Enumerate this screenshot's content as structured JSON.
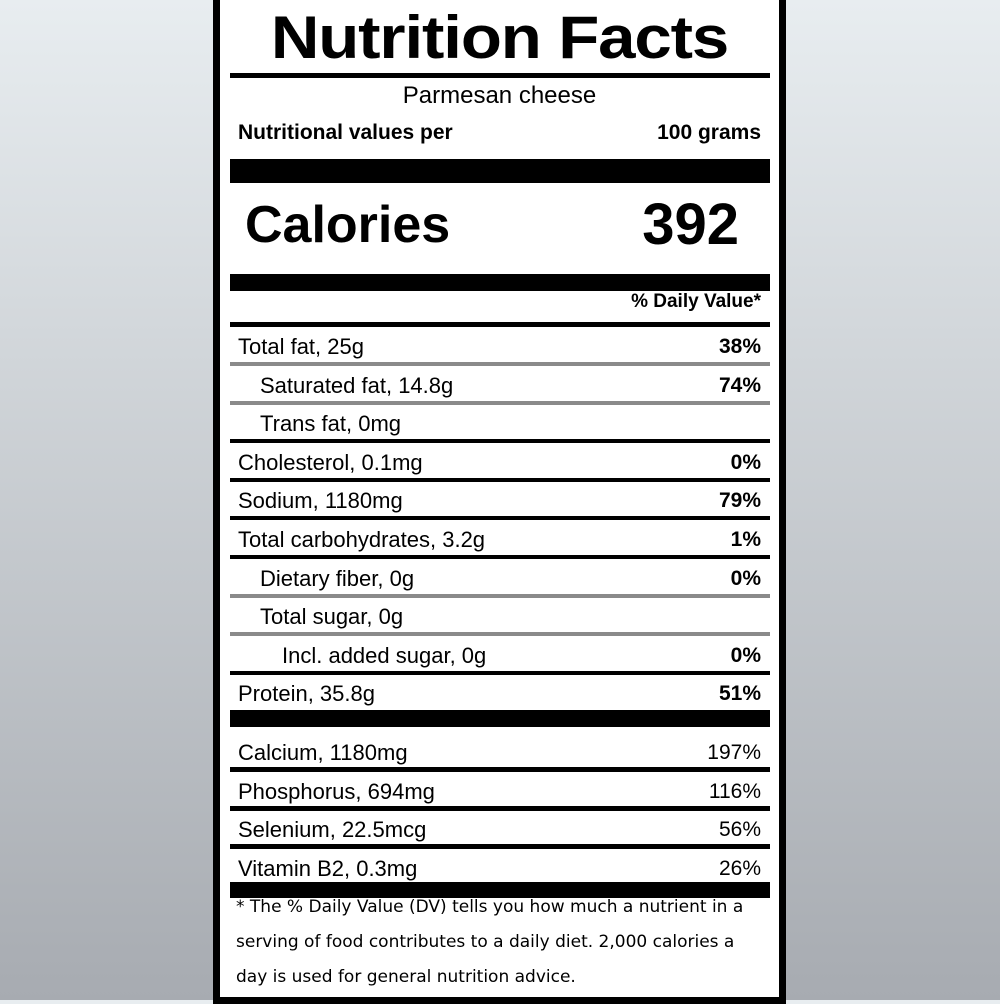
{
  "title": "Nutrition Facts",
  "food_name": "Parmesan cheese",
  "serving": {
    "label": "Nutritional values per",
    "value": "100 grams"
  },
  "calories": {
    "label": "Calories",
    "value": "392"
  },
  "daily_value_header": "% Daily Value*",
  "nutrients": [
    {
      "name": "Total fat, 25g",
      "dv": "38%",
      "indent": 0,
      "bold_dv": true,
      "divider": "gray"
    },
    {
      "name": "Saturated fat, 14.8g",
      "dv": "74%",
      "indent": 1,
      "bold_dv": true,
      "divider": "gray"
    },
    {
      "name": "Trans fat, 0mg",
      "dv": "",
      "indent": 1,
      "bold_dv": true,
      "divider": "black"
    },
    {
      "name": "Cholesterol, 0.1mg",
      "dv": "0%",
      "indent": 0,
      "bold_dv": true,
      "divider": "black"
    },
    {
      "name": "Sodium, 1180mg",
      "dv": "79%",
      "indent": 0,
      "bold_dv": true,
      "divider": "black"
    },
    {
      "name": "Total carbohydrates, 3.2g",
      "dv": "1%",
      "indent": 0,
      "bold_dv": true,
      "divider": "black"
    },
    {
      "name": "Dietary fiber, 0g",
      "dv": "0%",
      "indent": 1,
      "bold_dv": true,
      "divider": "gray"
    },
    {
      "name": "Total sugar, 0g",
      "dv": "",
      "indent": 1,
      "bold_dv": true,
      "divider": "gray"
    },
    {
      "name": "Incl. added sugar, 0g",
      "dv": "0%",
      "indent": 2,
      "bold_dv": true,
      "divider": "black"
    },
    {
      "name": "Protein, 35.8g",
      "dv": "51%",
      "indent": 0,
      "bold_dv": true,
      "divider": "thick"
    }
  ],
  "minerals": [
    {
      "name": "Calcium, 1180mg",
      "dv": "197%"
    },
    {
      "name": "Phosphorus, 694mg",
      "dv": "116%"
    },
    {
      "name": "Selenium, 22.5mcg",
      "dv": "56%"
    },
    {
      "name": "Vitamin B2, 0.3mg",
      "dv": "26%"
    }
  ],
  "footnote": "* The % Daily Value (DV) tells you how much a nutrient in a serving of food contributes to a daily diet. 2,000 calories a day is used for general nutrition advice."
}
